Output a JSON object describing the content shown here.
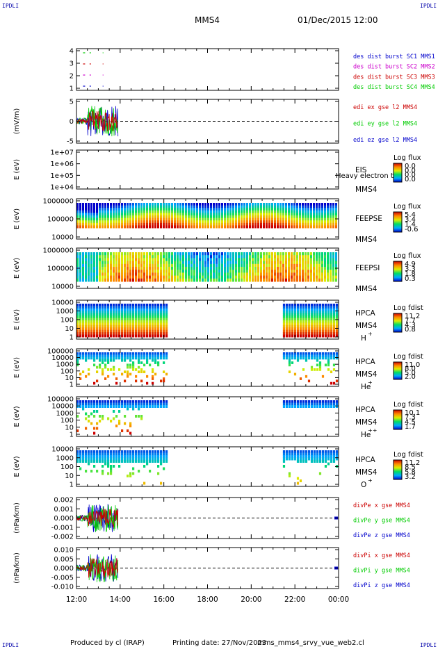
{
  "header": {
    "corner_label": "IPDLI",
    "spacecraft": "MMS4",
    "date_time": "01/Dec/2015 12:00"
  },
  "footer": {
    "produced_by": "Produced by cl (IRAP)",
    "printing_date": "Printing date: 27/Nov/2023",
    "filename": "mms_mms4_srvy_vue_web2.cl"
  },
  "colors": {
    "black": "#000000",
    "dark_blue": "#0000aa",
    "red": "#cc0000",
    "magenta": "#cc00cc",
    "green": "#00cc00",
    "blue": "#0000cc"
  },
  "chart_data": [
    {
      "id": "burst",
      "type": "scatter",
      "yticks": [
        "4",
        "3",
        "2",
        "1"
      ],
      "legend": [
        {
          "text": "des dist burst SC1 MMS1",
          "color": "#0000cc"
        },
        {
          "text": "des dist burst SC2 MMS2",
          "color": "#cc00cc"
        },
        {
          "text": "des dist burst SC3 MMS3",
          "color": "#cc0000"
        },
        {
          "text": "des dist burst SC4 MMS4",
          "color": "#00cc00"
        }
      ]
    },
    {
      "id": "edi",
      "type": "line",
      "ylabel": "(mV/m)",
      "yticks": [
        "5",
        "0",
        "-5"
      ],
      "legend": [
        {
          "text": "edi ex gse l2 MMS4",
          "color": "#cc0000"
        },
        {
          "text": "edi ey gse l2 MMS4",
          "color": "#00cc00"
        },
        {
          "text": "edi ez gse l2 MMS4",
          "color": "#0000cc"
        }
      ]
    },
    {
      "id": "eis",
      "type": "heatmap",
      "ylabel": "E (eV)",
      "yticks": [
        "1e+07",
        "1e+06",
        "1e+05",
        "1e+04"
      ],
      "labels": [
        "EIS",
        "MMS4"
      ],
      "overlay_text": "Heavy electron to",
      "cb_title": "Log flux",
      "cb_ticks": [
        "0.0",
        "0.0",
        "0.0",
        "0.0"
      ]
    },
    {
      "id": "feepse",
      "type": "heatmap",
      "ylabel": "E (eV)",
      "yticks": [
        "1000000",
        "100000",
        "10000"
      ],
      "labels": [
        "FEEPSE",
        "MMS4"
      ],
      "cb_title": "Log flux",
      "cb_ticks": [
        "5.4",
        "3.4",
        "1.4",
        "-0.6"
      ]
    },
    {
      "id": "feepsi",
      "type": "heatmap",
      "ylabel": "E (eV)",
      "yticks": [
        "1000000",
        "100000",
        "10000"
      ],
      "labels": [
        "FEEPSI",
        "MMS4"
      ],
      "cb_title": "Log flux",
      "cb_ticks": [
        "4.9",
        "3.3",
        "1.8",
        "0.3"
      ]
    },
    {
      "id": "hpca_h",
      "type": "heatmap",
      "ylabel": "E (eV)",
      "yticks": [
        "10000",
        "1000",
        "100",
        "10",
        "1"
      ],
      "labels": [
        "HPCA",
        "MMS4",
        "H"
      ],
      "species_sup": "+",
      "cb_title": "Log fdist",
      "cb_ticks": [
        "11.2",
        "7.7",
        "4.3",
        "0.8"
      ]
    },
    {
      "id": "hpca_he",
      "type": "heatmap",
      "ylabel": "E (eV)",
      "yticks": [
        "100000",
        "10000",
        "1000",
        "100",
        "10",
        "1"
      ],
      "labels": [
        "HPCA",
        "MMS4",
        "He"
      ],
      "species_sup": "+",
      "cb_title": "Log fdist",
      "cb_ticks": [
        "11.0",
        "8.0",
        "5.0",
        "2.0"
      ]
    },
    {
      "id": "hpca_hepp",
      "type": "heatmap",
      "ylabel": "E (eV)",
      "yticks": [
        "100000",
        "10000",
        "1000",
        "100",
        "10",
        "1"
      ],
      "labels": [
        "HPCA",
        "MMS4",
        "He"
      ],
      "species_sup": "++",
      "cb_title": "Log fdist",
      "cb_ticks": [
        "10.1",
        "7.3",
        "4.5",
        "1.7"
      ]
    },
    {
      "id": "hpca_o",
      "type": "heatmap",
      "ylabel": "E (eV)",
      "yticks": [
        "10000",
        "1000",
        "100",
        "10",
        "1"
      ],
      "labels": [
        "HPCA",
        "MMS4",
        "O"
      ],
      "species_sup": "+",
      "cb_title": "Log fdist",
      "cb_ticks": [
        "11.2",
        "8.5",
        "5.8",
        "3.2"
      ]
    },
    {
      "id": "divpe",
      "type": "line",
      "ylabel": "(nPa/km)",
      "yticks": [
        "0.002",
        "0.001",
        "0.000",
        "-0.001",
        "-0.002"
      ],
      "legend": [
        {
          "text": "divPe x gse MMS4",
          "color": "#cc0000"
        },
        {
          "text": "divPe y gse MMS4",
          "color": "#00cc00"
        },
        {
          "text": "divPe z gse MMS4",
          "color": "#0000cc"
        }
      ]
    },
    {
      "id": "divpi",
      "type": "line",
      "ylabel": "(nPa/km)",
      "yticks": [
        "0.010",
        "0.005",
        "0.000",
        "-0.005",
        "-0.010"
      ],
      "legend": [
        {
          "text": "divPi x gse MMS4",
          "color": "#cc0000"
        },
        {
          "text": "divPi y gse MMS4",
          "color": "#00cc00"
        },
        {
          "text": "divPi z gse MMS4",
          "color": "#0000cc"
        }
      ]
    }
  ],
  "time_axis": {
    "start_hour": 12,
    "end_hour": 24,
    "tick_labels": [
      "12:00",
      "14:00",
      "16:00",
      "18:00",
      "20:00",
      "22:00",
      "00:00"
    ]
  },
  "coverage": {
    "edi_end_hour": 13.9,
    "feeps_start_hour": 12.0,
    "hpca_segments": [
      [
        12.0,
        16.2
      ],
      [
        21.45,
        24.0
      ]
    ]
  }
}
